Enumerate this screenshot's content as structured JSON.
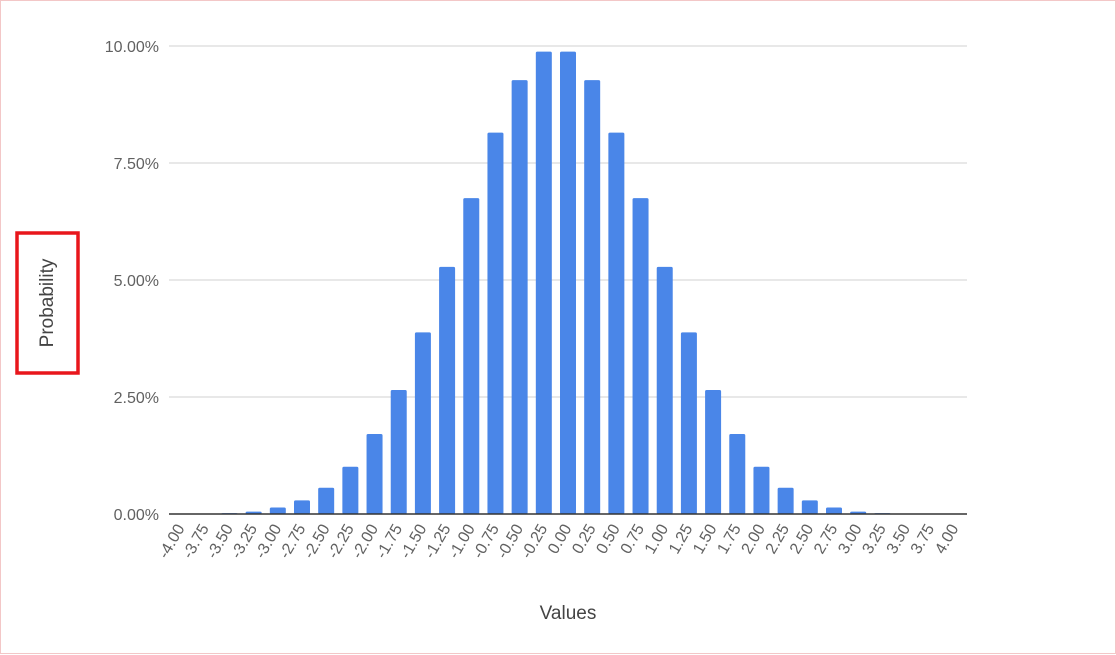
{
  "chart_data": {
    "type": "bar",
    "title": "",
    "xlabel": "Values",
    "ylabel": "Probability",
    "ylim": [
      0,
      0.1
    ],
    "yticks": [
      0,
      0.025,
      0.05,
      0.075,
      0.1
    ],
    "ytick_labels": [
      "0.00%",
      "2.50%",
      "5.00%",
      "7.50%",
      "10.00%"
    ],
    "grid": true,
    "legend": "none",
    "bar_color": "#4a86e8",
    "highlight_color": "#e8161c",
    "highlighted_element": "ylabel",
    "categories": [
      "-4.00",
      "-3.75",
      "-3.50",
      "-3.25",
      "-3.00",
      "-2.75",
      "-2.50",
      "-2.25",
      "-2.00",
      "-1.75",
      "-1.50",
      "-1.25",
      "-1.00",
      "-0.75",
      "-0.50",
      "-0.25",
      "0.00",
      "0.25",
      "0.50",
      "0.75",
      "1.00",
      "1.25",
      "1.50",
      "1.75",
      "2.00",
      "2.25",
      "2.50",
      "2.75",
      "3.00",
      "3.25",
      "3.50",
      "3.75",
      "4.00"
    ],
    "values": [
      0.0,
      0.0001,
      0.0002,
      0.0005,
      0.0014,
      0.0029,
      0.0056,
      0.0101,
      0.0171,
      0.0265,
      0.0388,
      0.0528,
      0.0675,
      0.0815,
      0.0927,
      0.0988,
      0.0988,
      0.0927,
      0.0815,
      0.0675,
      0.0528,
      0.0388,
      0.0265,
      0.0171,
      0.0101,
      0.0056,
      0.0029,
      0.0014,
      0.0005,
      0.0002,
      0.0001,
      0.0,
      0.0
    ]
  }
}
